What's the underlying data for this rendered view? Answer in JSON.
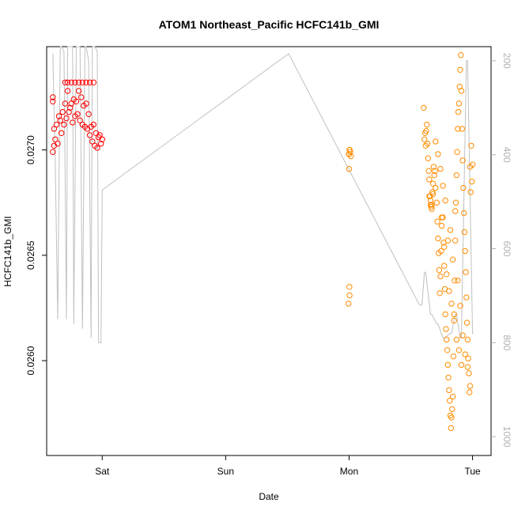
{
  "chart_data": {
    "type": "scatter",
    "title": "ATOM1 Northeast_Pacific HCFC141b_GMI",
    "xlabel": "Date",
    "ylabel": "HCFC141b_GMI",
    "x_unit": "days",
    "xlim": [
      -0.45,
      3.15
    ],
    "x_ticks": [
      {
        "value": 0,
        "label": "Sat"
      },
      {
        "value": 1,
        "label": "Sun"
      },
      {
        "value": 2,
        "label": "Mon"
      },
      {
        "value": 3,
        "label": "Tue"
      }
    ],
    "ylim": [
      0.02555,
      0.02749
    ],
    "y_ticks": [
      {
        "value": 0.026,
        "label": "0.0260"
      },
      {
        "value": 0.0265,
        "label": "0.0265"
      },
      {
        "value": 0.027,
        "label": "0.0270"
      }
    ],
    "y2_label": "",
    "y2lim": [
      1040,
      170
    ],
    "y2_ticks": [
      200,
      400,
      600,
      800,
      1000
    ],
    "grid": false,
    "colors": {
      "series1": "#ff0000",
      "series2": "#ff8c00",
      "secondary_line": "#c0c0c0",
      "axis": "#000000",
      "secondary_axis": "#b0b0b0"
    },
    "series": [
      {
        "color": "#ff0000",
        "marker": "open-circle",
        "x": [
          -0.4,
          -0.39,
          -0.38,
          -0.37,
          -0.36,
          -0.35,
          -0.34,
          -0.33,
          -0.32,
          -0.31,
          -0.3,
          -0.29,
          -0.28,
          -0.27,
          -0.26,
          -0.25,
          -0.24,
          -0.23,
          -0.22,
          -0.21,
          -0.2,
          -0.19,
          -0.18,
          -0.17,
          -0.16,
          -0.15,
          -0.14,
          -0.13,
          -0.12,
          -0.11,
          -0.1,
          -0.09,
          -0.08,
          -0.07,
          -0.06,
          -0.05,
          -0.04,
          -0.03,
          -0.02,
          -0.01,
          0.0,
          -0.3,
          -0.28,
          -0.25,
          -0.22,
          -0.19,
          -0.16,
          -0.13,
          -0.1,
          -0.07,
          -0.4,
          -0.4,
          -0.39
        ],
        "y": [
          0.02725,
          0.0271,
          0.02705,
          0.02712,
          0.02703,
          0.02716,
          0.02714,
          0.02708,
          0.02718,
          0.02712,
          0.02722,
          0.02715,
          0.02728,
          0.02718,
          0.0272,
          0.02722,
          0.02713,
          0.02724,
          0.02716,
          0.02723,
          0.02717,
          0.02728,
          0.02714,
          0.02725,
          0.02712,
          0.02721,
          0.02711,
          0.02722,
          0.0271,
          0.02717,
          0.02707,
          0.02711,
          0.02704,
          0.02712,
          0.02702,
          0.02708,
          0.02701,
          0.02706,
          0.02707,
          0.02703,
          0.02705,
          0.02732,
          0.02732,
          0.02732,
          0.02732,
          0.02732,
          0.02732,
          0.02732,
          0.02732,
          0.02732,
          0.02723,
          0.02699,
          0.02702
        ]
      },
      {
        "color": "#ff8c00",
        "marker": "open-circle",
        "x": [
          2.0,
          2.005,
          2.01,
          2.015,
          2.0,
          2.002,
          2.004,
          1.995,
          2.003,
          1.998,
          2.605,
          2.61,
          2.615,
          2.62,
          2.625,
          2.63,
          2.635,
          2.64,
          2.645,
          2.65,
          2.655,
          2.66,
          2.665,
          2.67,
          2.675,
          2.68,
          2.685,
          2.69,
          2.695,
          2.7,
          2.71,
          2.715,
          2.72,
          2.725,
          2.73,
          2.735,
          2.74,
          2.745,
          2.75,
          2.76,
          2.765,
          2.77,
          2.775,
          2.78,
          2.785,
          2.79,
          2.795,
          2.8,
          2.805,
          2.81,
          2.815,
          2.82,
          2.825,
          2.83,
          2.835,
          2.84,
          2.845,
          2.85,
          2.855,
          2.86,
          2.865,
          2.87,
          2.875,
          2.88,
          2.885,
          2.89,
          2.895,
          2.9,
          2.905,
          2.91,
          2.915,
          2.92,
          2.925,
          2.93,
          2.935,
          2.94,
          2.945,
          2.95,
          2.955,
          2.96,
          2.965,
          2.97,
          2.975,
          2.98,
          2.985,
          2.99,
          2.995,
          3.0,
          2.8,
          2.82,
          2.84,
          2.86,
          2.88,
          2.9,
          2.92,
          2.94,
          2.96,
          2.98,
          2.7,
          2.72,
          2.74,
          2.76,
          2.78,
          2.65,
          2.66,
          2.67,
          2.68,
          2.75,
          2.77,
          2.79,
          2.81,
          2.83,
          2.85,
          2.87,
          2.89,
          2.91
        ],
        "y": [
          0.02698,
          0.027,
          0.02699,
          0.02697,
          0.02691,
          0.02635,
          0.02631,
          0.02627,
          0.027,
          0.02698,
          0.0272,
          0.02705,
          0.02708,
          0.02702,
          0.02709,
          0.02712,
          0.02703,
          0.02696,
          0.0269,
          0.02686,
          0.02678,
          0.02676,
          0.02673,
          0.02674,
          0.0268,
          0.02684,
          0.02692,
          0.02688,
          0.0269,
          0.02682,
          0.02675,
          0.02666,
          0.02658,
          0.02651,
          0.02643,
          0.02632,
          0.0264,
          0.02652,
          0.02664,
          0.02668,
          0.02656,
          0.02645,
          0.02634,
          0.02622,
          0.02615,
          0.0261,
          0.02605,
          0.02598,
          0.02592,
          0.02586,
          0.02581,
          0.02574,
          0.02568,
          0.02573,
          0.02577,
          0.02583,
          0.02602,
          0.02622,
          0.02638,
          0.02657,
          0.02675,
          0.02688,
          0.02699,
          0.0271,
          0.02718,
          0.02722,
          0.0273,
          0.02738,
          0.02745,
          0.02728,
          0.0271,
          0.02695,
          0.02682,
          0.0267,
          0.02661,
          0.02652,
          0.02642,
          0.0263,
          0.02618,
          0.0261,
          0.02601,
          0.02594,
          0.02585,
          0.02692,
          0.0268,
          0.02702,
          0.02685,
          0.02693,
          0.02657,
          0.02662,
          0.02648,
          0.02671,
          0.02638,
          0.02626,
          0.02612,
          0.02603,
          0.02597,
          0.02588,
          0.02704,
          0.02698,
          0.02691,
          0.02683,
          0.02676,
          0.02678,
          0.02674,
          0.02672,
          0.02679,
          0.02668,
          0.02654,
          0.02641,
          0.02633,
          0.02627,
          0.02619,
          0.0261,
          0.02605,
          0.02598
        ]
      }
    ],
    "secondary_series": {
      "color": "#c0c0c0",
      "axis": "right",
      "x": [
        -0.4,
        -0.38,
        -0.36,
        -0.34,
        -0.33,
        -0.31,
        -0.29,
        -0.28,
        -0.26,
        -0.24,
        -0.23,
        -0.21,
        -0.19,
        -0.18,
        -0.16,
        -0.14,
        -0.13,
        -0.11,
        -0.09,
        -0.08,
        -0.06,
        -0.04,
        -0.03,
        -0.01,
        0.0,
        1.51,
        2.57,
        2.59,
        2.61,
        2.62,
        2.66,
        2.67,
        2.71,
        2.72,
        2.76,
        2.77,
        2.82,
        2.83,
        2.86,
        2.87,
        2.9,
        2.91,
        2.95,
        2.96,
        3.0,
        3.01
      ],
      "y": [
        185,
        420,
        750,
        170,
        170,
        180,
        750,
        170,
        170,
        150,
        760,
        170,
        170,
        170,
        770,
        170,
        170,
        200,
        790,
        170,
        170,
        180,
        800,
        800,
        475,
        185,
        720,
        720,
        650,
        650,
        740,
        740,
        760,
        760,
        790,
        790,
        780,
        780,
        740,
        740,
        790,
        790,
        200,
        200,
        780,
        780
      ]
    }
  }
}
